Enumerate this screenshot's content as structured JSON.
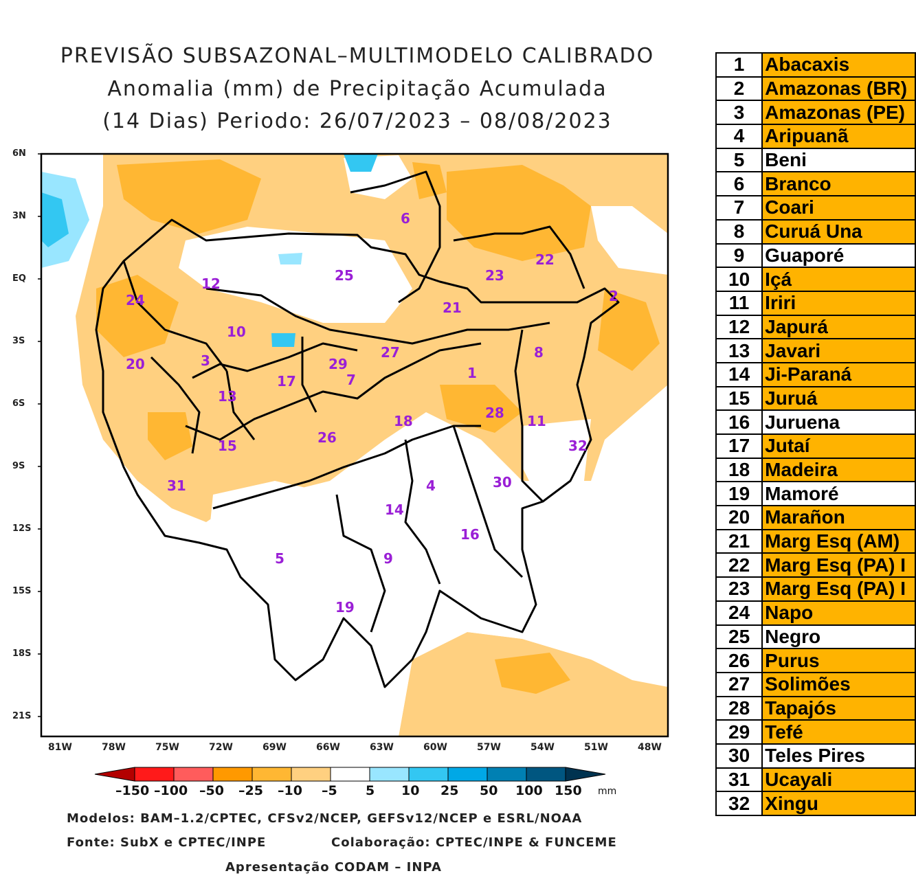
{
  "title": {
    "line1": "PREVISÃO SUBSAZONAL–MULTIMODELO CALIBRADO",
    "line2": "Anomalia (mm) de Precipitação Acumulada",
    "line3": "(14 Dias) Periodo: 26/07/2023 – 08/08/2023"
  },
  "map": {
    "lat_labels": [
      "6N",
      "3N",
      "EQ",
      "3S",
      "6S",
      "9S",
      "12S",
      "15S",
      "18S",
      "21S"
    ],
    "lon_labels": [
      "81W",
      "78W",
      "75W",
      "72W",
      "69W",
      "66W",
      "63W",
      "60W",
      "57W",
      "54W",
      "51W",
      "48W"
    ],
    "basin_numbers": [
      "1",
      "2",
      "3",
      "4",
      "5",
      "6",
      "7",
      "8",
      "9",
      "10",
      "11",
      "12",
      "13",
      "14",
      "15",
      "16",
      "17",
      "18",
      "19",
      "20",
      "21",
      "22",
      "23",
      "24",
      "25",
      "26",
      "27",
      "28",
      "29",
      "30",
      "31",
      "32"
    ],
    "label_color": "#9a1fd6"
  },
  "colorbar": {
    "labels": [
      "–150",
      "–100",
      "–50",
      "–25",
      "–10",
      "–5",
      "5",
      "10",
      "25",
      "50",
      "100",
      "150"
    ],
    "unit": "mm",
    "colors": [
      "#b30000",
      "#ff1a1a",
      "#ff5c5c",
      "#ff9900",
      "#ffb733",
      "#ffd080",
      "#ffffff",
      "#99e6ff",
      "#33c7f2",
      "#00a8e6",
      "#0080b3",
      "#005680",
      "#003350"
    ]
  },
  "footer": {
    "models": "Modelos: BAM–1.2/CPTEC, CFSv2/NCEP, GEFSv12/NCEP e ESRL/NOAA",
    "source": "Fonte: SubX e CPTEC/INPE",
    "collab": "Colaboração: CPTEC/INPE & FUNCEME",
    "presentation": "Apresentação CODAM – INPA"
  },
  "legend": {
    "highlight_color": "#ffb300",
    "rows": [
      {
        "num": "1",
        "name": "Abacaxis",
        "hl": true
      },
      {
        "num": "2",
        "name": "Amazonas (BR)",
        "hl": true
      },
      {
        "num": "3",
        "name": "Amazonas (PE)",
        "hl": true
      },
      {
        "num": "4",
        "name": "Aripuanã",
        "hl": true
      },
      {
        "num": "5",
        "name": "Beni",
        "hl": false
      },
      {
        "num": "6",
        "name": "Branco",
        "hl": true
      },
      {
        "num": "7",
        "name": "Coari",
        "hl": true
      },
      {
        "num": "8",
        "name": "Curuá Una",
        "hl": true
      },
      {
        "num": "9",
        "name": "Guaporé",
        "hl": false
      },
      {
        "num": "10",
        "name": "Içá",
        "hl": true
      },
      {
        "num": "11",
        "name": "Iriri",
        "hl": true
      },
      {
        "num": "12",
        "name": "Japurá",
        "hl": true
      },
      {
        "num": "13",
        "name": "Javari",
        "hl": true
      },
      {
        "num": "14",
        "name": "Ji-Paraná",
        "hl": true
      },
      {
        "num": "15",
        "name": "Juruá",
        "hl": true
      },
      {
        "num": "16",
        "name": "Juruena",
        "hl": false
      },
      {
        "num": "17",
        "name": "Jutaí",
        "hl": true
      },
      {
        "num": "18",
        "name": "Madeira",
        "hl": true
      },
      {
        "num": "19",
        "name": "Mamoré",
        "hl": false
      },
      {
        "num": "20",
        "name": "Marañon",
        "hl": true
      },
      {
        "num": "21",
        "name": "Marg Esq (AM)",
        "hl": true
      },
      {
        "num": "22",
        "name": "Marg Esq (PA) I",
        "hl": true
      },
      {
        "num": "23",
        "name": "Marg Esq (PA) I",
        "hl": true
      },
      {
        "num": "24",
        "name": "Napo",
        "hl": true
      },
      {
        "num": "25",
        "name": "Negro",
        "hl": false
      },
      {
        "num": "26",
        "name": "Purus",
        "hl": true
      },
      {
        "num": "27",
        "name": "Solimões",
        "hl": true
      },
      {
        "num": "28",
        "name": "Tapajós",
        "hl": true
      },
      {
        "num": "29",
        "name": "Tefé",
        "hl": true
      },
      {
        "num": "30",
        "name": "Teles Pires",
        "hl": false
      },
      {
        "num": "31",
        "name": "Ucayali",
        "hl": true
      },
      {
        "num": "32",
        "name": "Xingu",
        "hl": true
      }
    ]
  }
}
